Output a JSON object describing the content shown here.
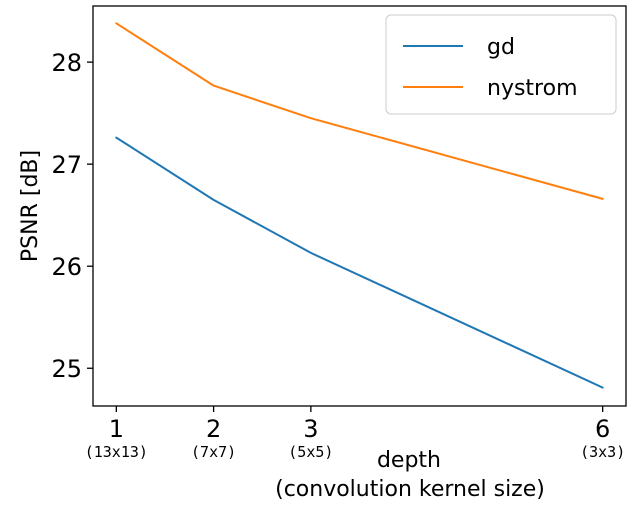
{
  "chart_data": {
    "type": "line",
    "title": "",
    "xlabel": "depth",
    "xlabel_sub": "(convolution kernel size)",
    "ylabel": "PSNR [dB]",
    "x": [
      1,
      2,
      3,
      6
    ],
    "x_tick_labels": [
      "1",
      "2",
      "3",
      "6"
    ],
    "x_tick_sublabels": [
      "(13x13)",
      "(7x7)",
      "(5x5)",
      "(3x3)"
    ],
    "xlim": [
      0.76,
      6.24
    ],
    "yticks": [
      25,
      26,
      27,
      28
    ],
    "ylim": [
      24.63,
      28.55
    ],
    "grid": false,
    "legend_position": "top-right",
    "series": [
      {
        "name": "gd",
        "color": "#1f77b4",
        "values": [
          27.26,
          26.65,
          26.13,
          24.81
        ]
      },
      {
        "name": "nystrom",
        "color": "#ff7f0e",
        "values": [
          28.38,
          27.77,
          27.45,
          26.66
        ]
      }
    ]
  }
}
